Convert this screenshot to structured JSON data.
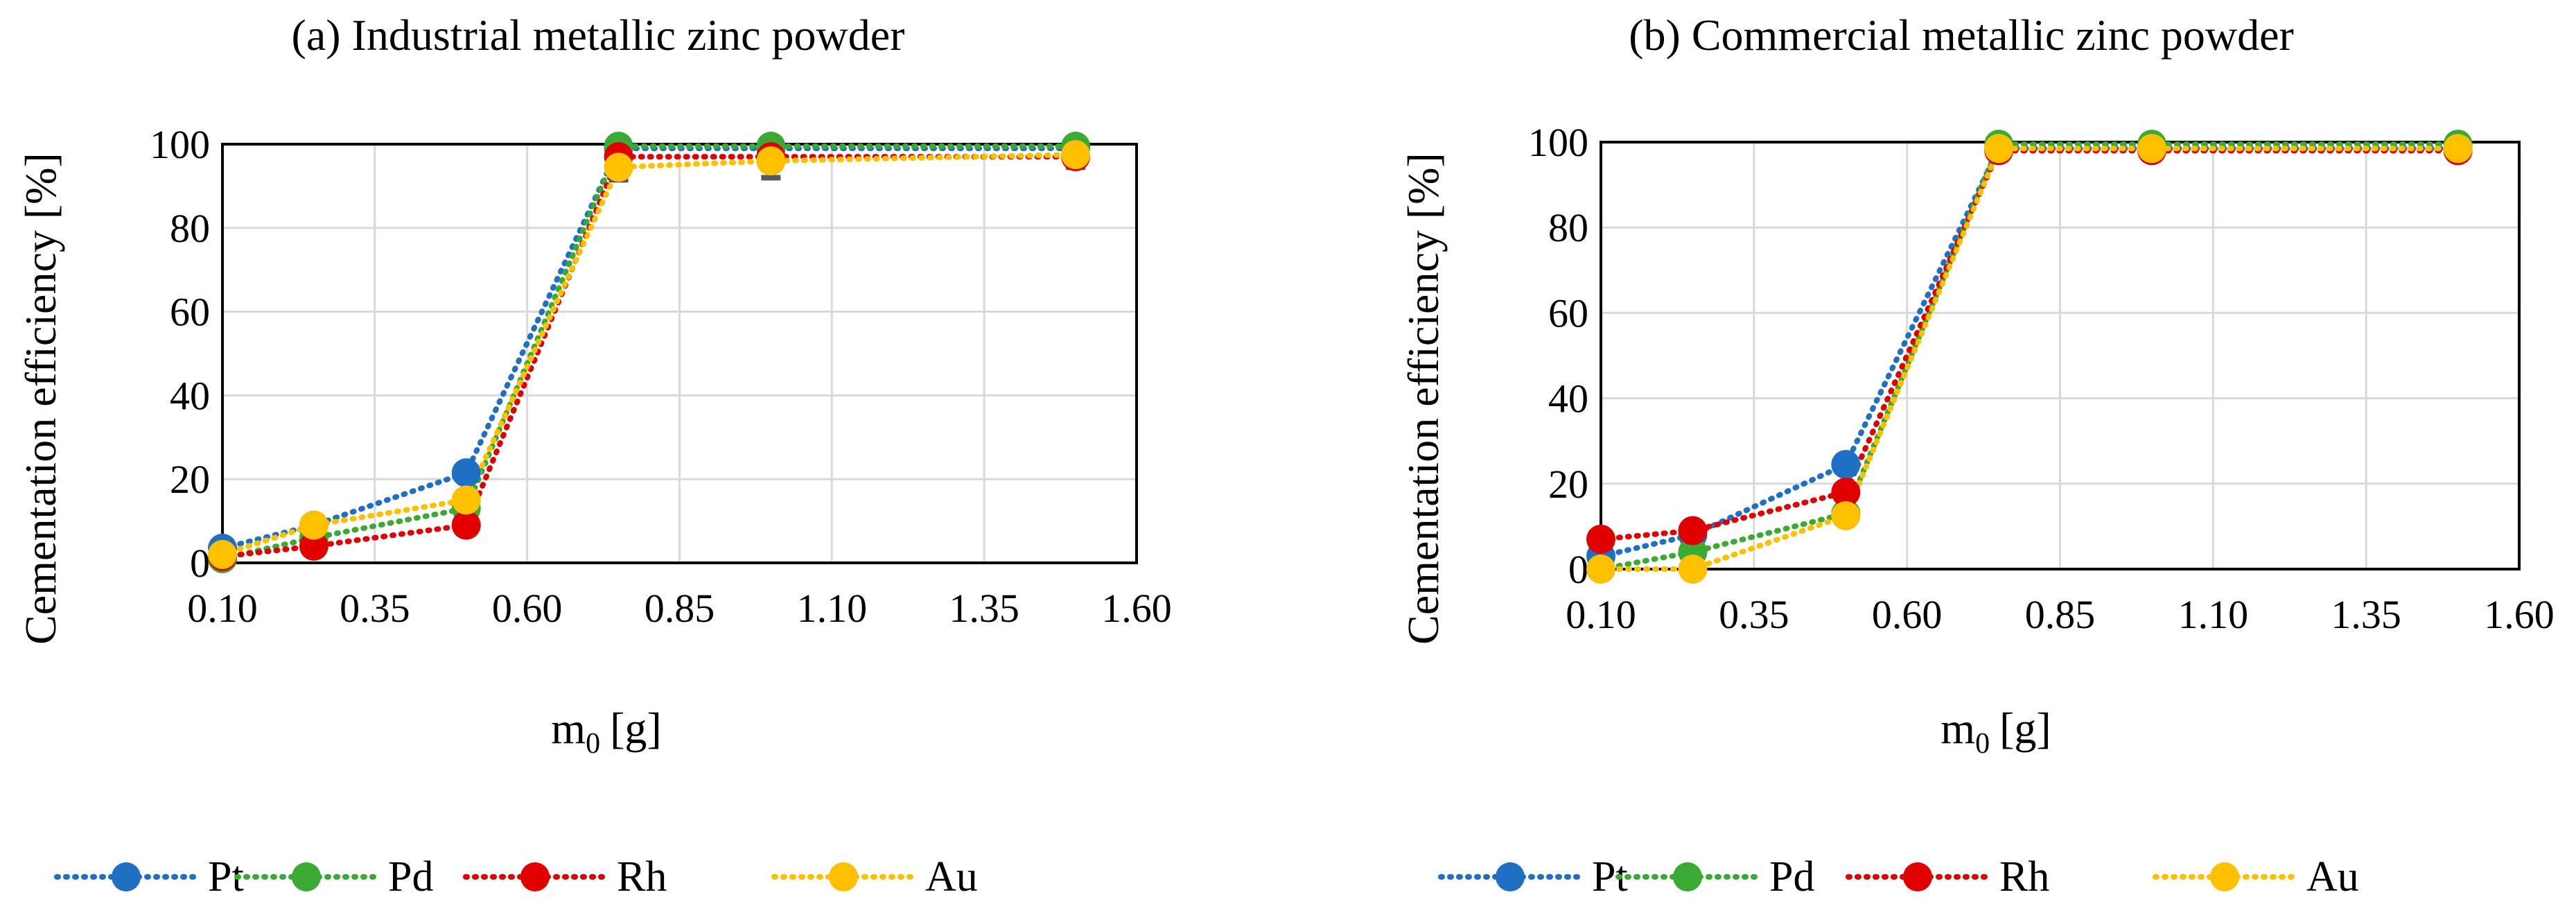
{
  "chart_data": [
    {
      "type": "line",
      "title": "(a) Industrial metallic zinc powder",
      "xlabel_main": "m",
      "xlabel_sub": "0",
      "xlabel_unit": "[g]",
      "ylabel": "Cementation efficiency [%]",
      "xlim": [
        0.1,
        1.6
      ],
      "ylim": [
        0,
        100
      ],
      "x_ticks": [
        "0.10",
        "0.35",
        "0.60",
        "0.85",
        "1.10",
        "1.35",
        "1.60"
      ],
      "y_ticks": [
        "0",
        "20",
        "40",
        "60",
        "80",
        "100"
      ],
      "x": [
        0.1,
        0.25,
        0.5,
        0.75,
        1.0,
        1.5
      ],
      "series": [
        {
          "name": "Pt",
          "color": "#1f6fc5",
          "values": [
            3.5,
            9,
            21.5,
            99,
            99,
            99
          ],
          "err": [
            0,
            0,
            0,
            1,
            1,
            1
          ]
        },
        {
          "name": "Pd",
          "color": "#3aaa35",
          "values": [
            1,
            6,
            13,
            99.5,
            99.5,
            99.5
          ],
          "err": [
            0,
            0,
            0,
            1,
            1,
            1
          ]
        },
        {
          "name": "Rh",
          "color": "#e00000",
          "values": [
            1.5,
            4,
            9,
            97,
            97,
            97
          ],
          "err": [
            0,
            0,
            0,
            2,
            2,
            2
          ]
        },
        {
          "name": "Au",
          "color": "#ffc000",
          "values": [
            2,
            9,
            15,
            94.5,
            96,
            97.5
          ],
          "err": [
            0,
            0,
            0,
            3,
            4,
            3
          ]
        }
      ]
    },
    {
      "type": "line",
      "title": "(b) Commercial metallic zinc powder",
      "xlabel_main": "m",
      "xlabel_sub": "0",
      "xlabel_unit": "[g]",
      "ylabel": "Cementation efficiency [%]",
      "xlim": [
        0.1,
        1.6
      ],
      "ylim": [
        0,
        100
      ],
      "x_ticks": [
        "0.10",
        "0.35",
        "0.60",
        "0.85",
        "1.10",
        "1.35",
        "1.60"
      ],
      "y_ticks": [
        "0",
        "20",
        "40",
        "60",
        "80",
        "100"
      ],
      "x": [
        0.1,
        0.25,
        0.5,
        0.75,
        1.0,
        1.5
      ],
      "series": [
        {
          "name": "Pt",
          "color": "#1f6fc5",
          "values": [
            3,
            8,
            24.5,
            98.5,
            98.5,
            98.5
          ],
          "err": [
            0,
            0,
            0,
            2,
            2,
            2
          ]
        },
        {
          "name": "Pd",
          "color": "#3aaa35",
          "values": [
            0,
            4,
            13,
            99.5,
            99.5,
            99.5
          ],
          "err": [
            0,
            0,
            0,
            1,
            1,
            1
          ]
        },
        {
          "name": "Rh",
          "color": "#e00000",
          "values": [
            7,
            9,
            18,
            98,
            98,
            98
          ],
          "err": [
            0,
            0,
            0,
            2,
            2,
            2
          ]
        },
        {
          "name": "Au",
          "color": "#ffc000",
          "values": [
            0,
            0,
            12.5,
            98.5,
            98.5,
            98.5
          ],
          "err": [
            0,
            0,
            0,
            2,
            2,
            2
          ]
        }
      ]
    }
  ]
}
